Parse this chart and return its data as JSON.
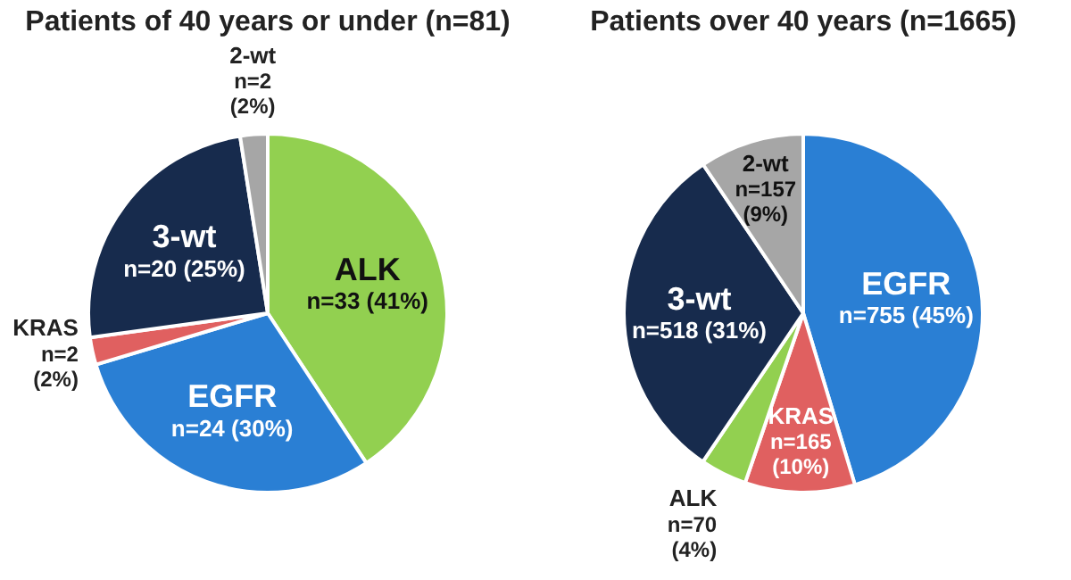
{
  "chart_data": [
    {
      "type": "pie",
      "title": "Patients of 40 years or under (n=81)",
      "categories": [
        "ALK",
        "EGFR",
        "KRAS",
        "3-wt",
        "2-wt"
      ],
      "values": [
        33,
        24,
        2,
        20,
        2
      ],
      "value_labels": [
        "n=33 (41%)",
        "n=24 (30%)",
        "n=2 (2%)",
        "n=20 (25%)",
        "n=2 (2%)"
      ],
      "colors": [
        "#92d050",
        "#2a7fd4",
        "#e06060",
        "#172b4d",
        "#a6a6a6"
      ]
    },
    {
      "type": "pie",
      "title": "Patients over 40 years (n=1665)",
      "categories": [
        "EGFR",
        "KRAS",
        "ALK",
        "3-wt",
        "2-wt"
      ],
      "values": [
        755,
        165,
        70,
        518,
        157
      ],
      "value_labels": [
        "n=755 (45%)",
        "n=165 (10%)",
        "n=70 (4%)",
        "n=518 (31%)",
        "n=157 (9%)"
      ],
      "colors": [
        "#2a7fd4",
        "#e06060",
        "#92d050",
        "#172b4d",
        "#a6a6a6"
      ]
    }
  ]
}
